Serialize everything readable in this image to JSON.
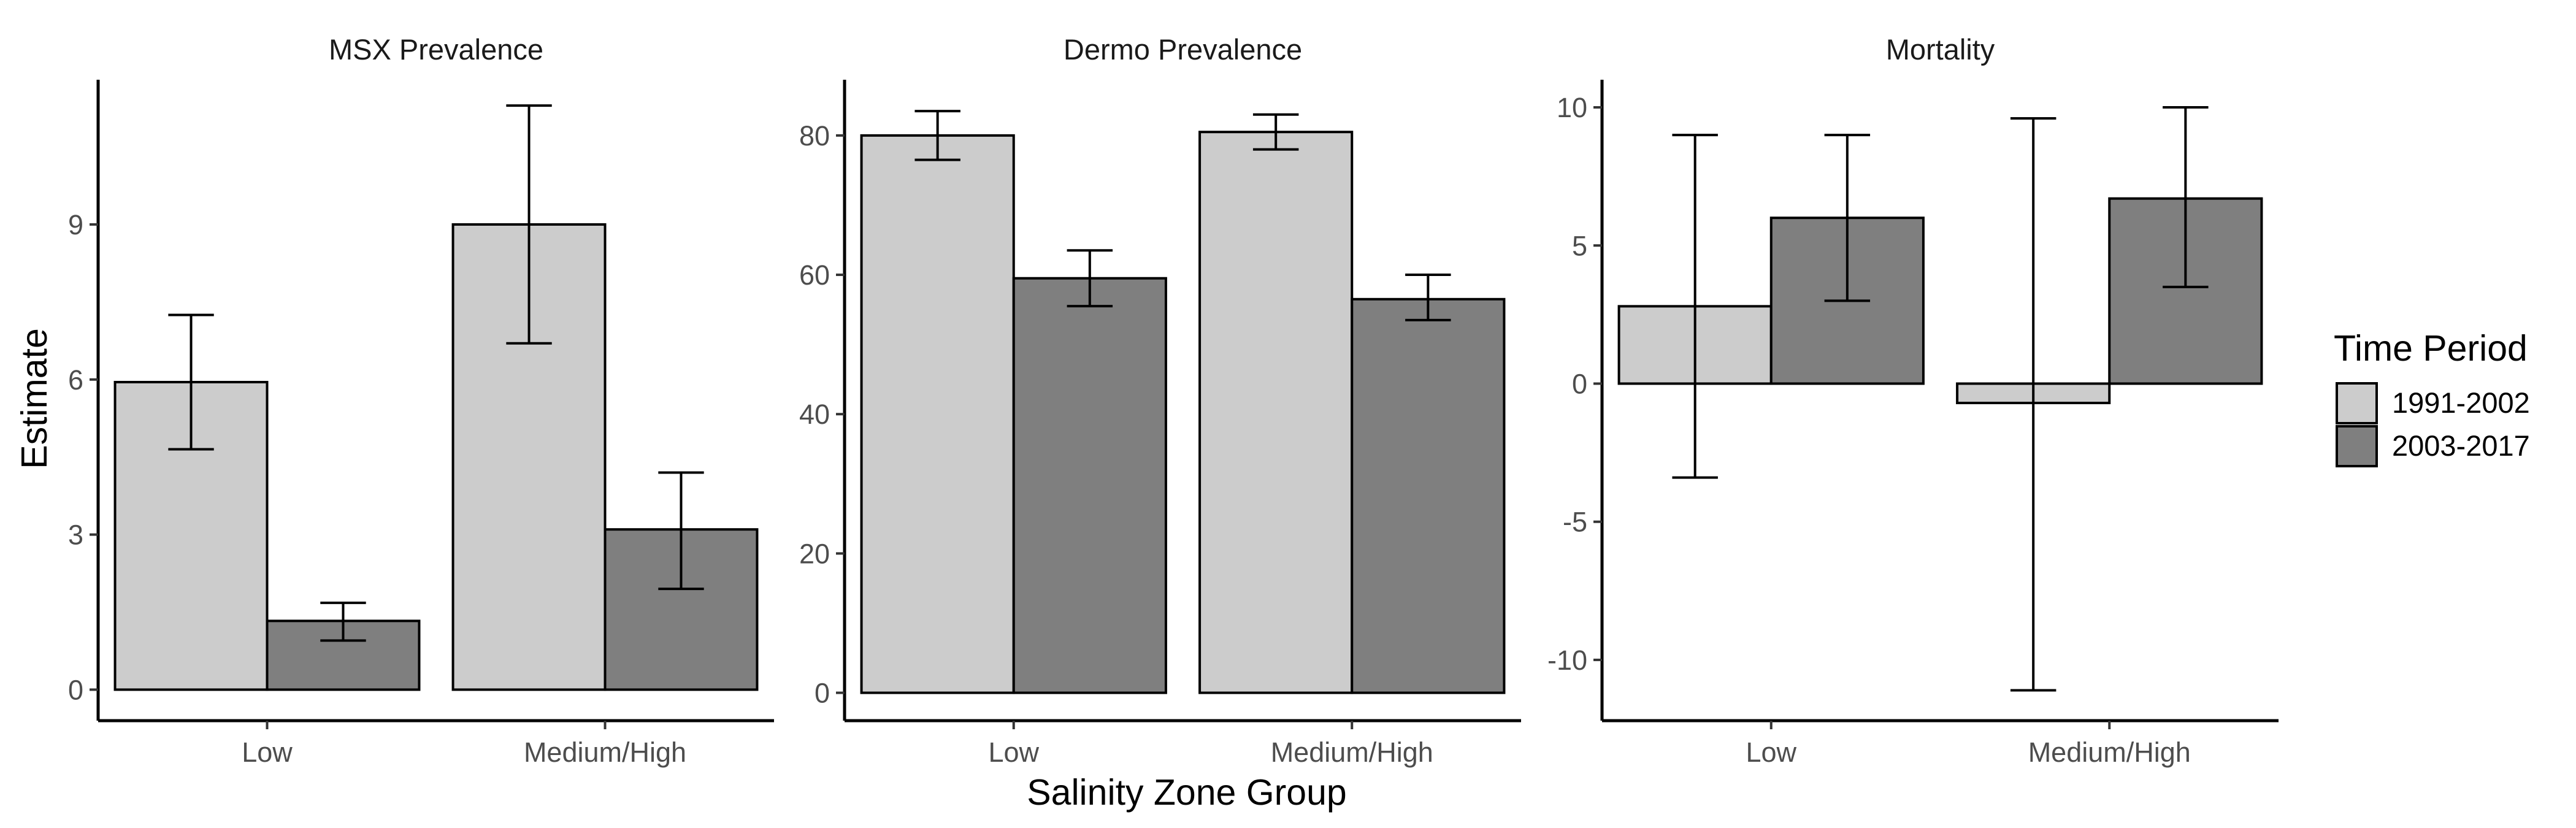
{
  "chart_data": {
    "type": "bar",
    "xlabel": "Salinity Zone Group",
    "ylabel": "Estimate",
    "legend": {
      "title": "Time Period",
      "placement": "right",
      "entries": [
        {
          "name": "1991-2002",
          "color": "#cccccc"
        },
        {
          "name": "2003-2017",
          "color": "#7f7f7f"
        }
      ]
    },
    "categories": [
      "Low",
      "Medium/High"
    ],
    "panels": [
      {
        "title": "MSX Prevalence",
        "ylim": [
          -0.6,
          11.8
        ],
        "yticks": [
          0,
          3,
          6,
          9
        ],
        "series": [
          {
            "name": "1991-2002",
            "values": [
              5.95,
              9.0
            ],
            "lower": [
              4.65,
              6.7
            ],
            "upper": [
              7.25,
              11.3
            ]
          },
          {
            "name": "2003-2017",
            "values": [
              1.33,
              3.1
            ],
            "lower": [
              0.95,
              1.95
            ],
            "upper": [
              1.68,
              4.2
            ]
          }
        ]
      },
      {
        "title": "Dermo Prevalence",
        "ylim": [
          -4,
          88
        ],
        "yticks": [
          0,
          20,
          40,
          60,
          80
        ],
        "series": [
          {
            "name": "1991-2002",
            "values": [
              80.0,
              80.5
            ],
            "lower": [
              76.5,
              78.0
            ],
            "upper": [
              83.5,
              83.0
            ]
          },
          {
            "name": "2003-2017",
            "values": [
              59.5,
              56.5
            ],
            "lower": [
              55.5,
              53.5
            ],
            "upper": [
              63.5,
              60.0
            ]
          }
        ]
      },
      {
        "title": "Mortality",
        "ylim": [
          -12.2,
          11.0
        ],
        "yticks": [
          -10,
          -5,
          0,
          5,
          10
        ],
        "series": [
          {
            "name": "1991-2002",
            "values": [
              2.8,
              -0.7
            ],
            "lower": [
              -3.4,
              -11.1
            ],
            "upper": [
              9.0,
              9.6
            ]
          },
          {
            "name": "2003-2017",
            "values": [
              6.0,
              6.7
            ],
            "lower": [
              3.0,
              3.5
            ],
            "upper": [
              9.0,
              10.0
            ]
          }
        ]
      }
    ]
  }
}
